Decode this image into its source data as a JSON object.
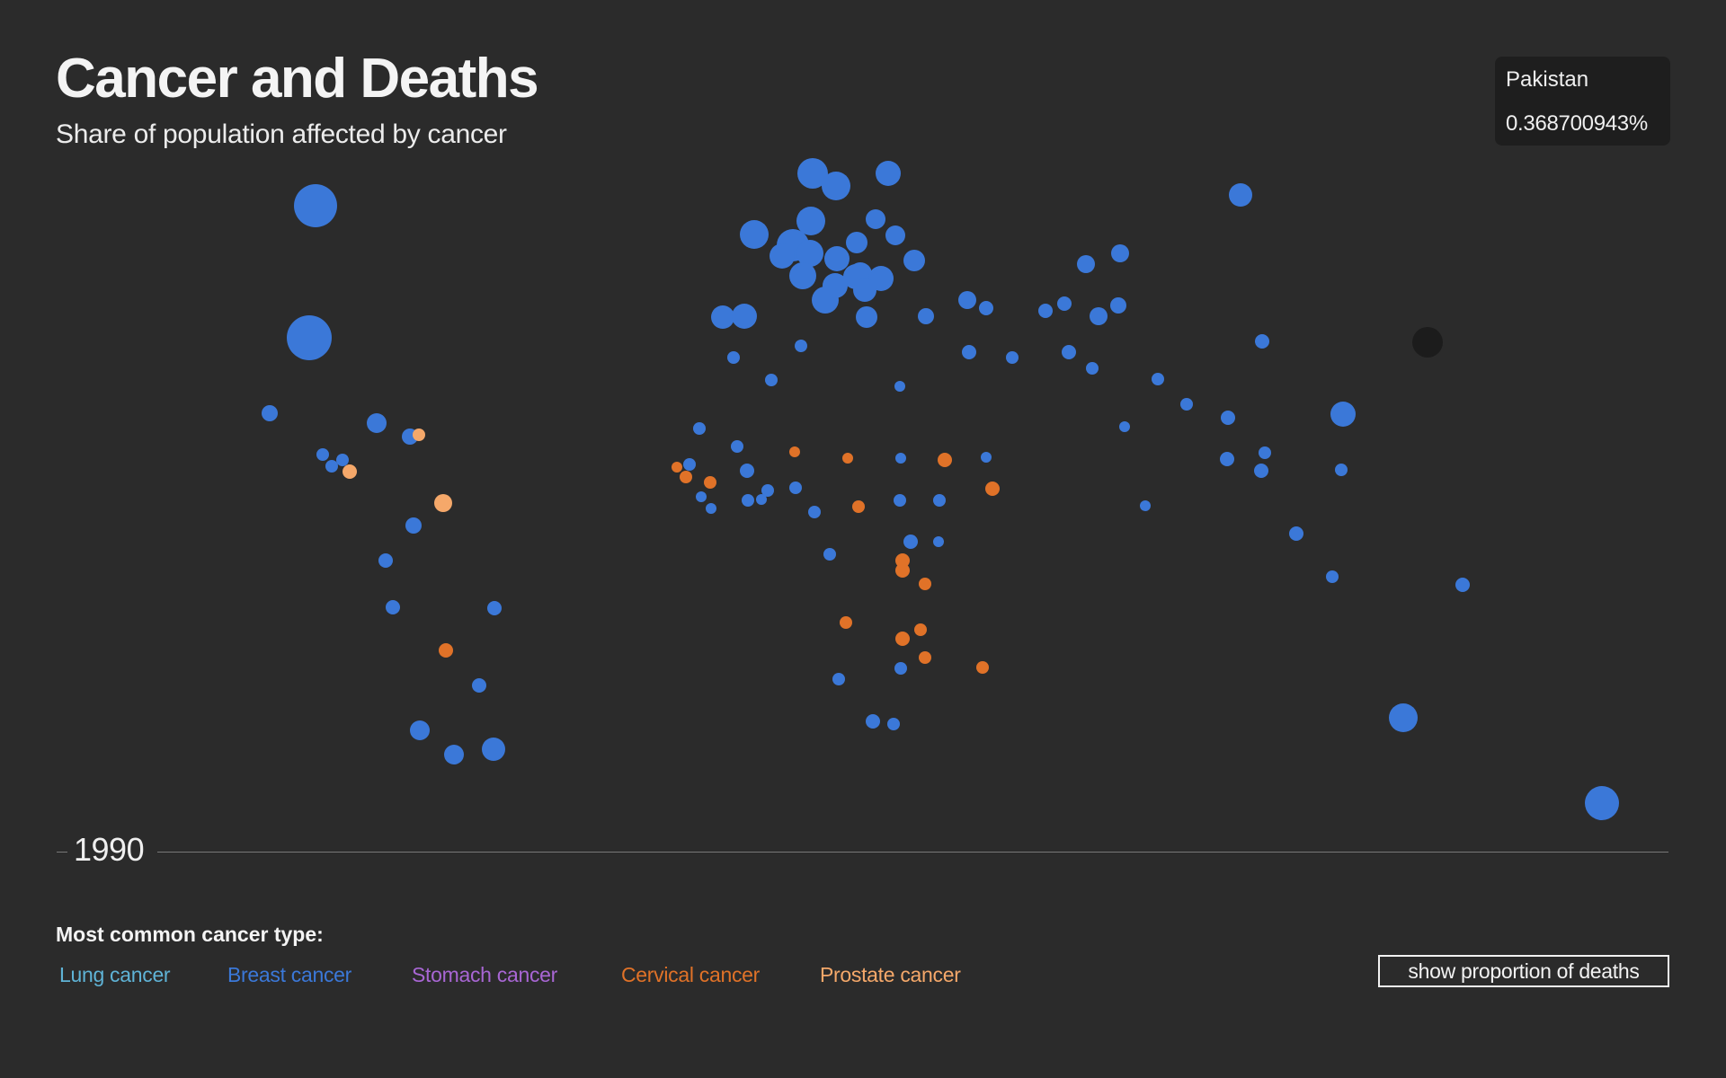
{
  "header": {
    "title": "Cancer and Deaths",
    "subtitle": "Share of population affected by cancer"
  },
  "tooltip": {
    "country": "Pakistan",
    "value": "0.368700943%"
  },
  "timeline": {
    "year": "1990"
  },
  "legend": {
    "title": "Most common cancer type:",
    "items": [
      {
        "label": "Lung cancer",
        "color": "#5fb3d6"
      },
      {
        "label": "Breast cancer",
        "color": "#3b78d8"
      },
      {
        "label": "Stomach cancer",
        "color": "#a866d4"
      },
      {
        "label": "Cervical cancer",
        "color": "#e07228"
      },
      {
        "label": "Prostate cancer",
        "color": "#f5a86a"
      }
    ]
  },
  "controls": {
    "toggle_label": "show proportion of deaths"
  },
  "colors": {
    "background": "#2b2b2b",
    "breast": "#3b78d8",
    "cervical": "#e07228",
    "prostate": "#f5a86a",
    "highlight": "#1c1c1c"
  },
  "chart_data": {
    "type": "scatter",
    "title": "Cancer and Deaths",
    "subtitle": "Share of population affected by cancer",
    "year": "1990",
    "encoding": "bubble per country; color = most common cancer type; size = share of population affected",
    "highlighted": {
      "country": "Pakistan",
      "value": "0.368700943%"
    },
    "series": [
      {
        "name": "Breast cancer",
        "points": [
          [
            351,
            229,
            24
          ],
          [
            344,
            376,
            25
          ],
          [
            300,
            460,
            9
          ],
          [
            419,
            471,
            11
          ],
          [
            359,
            506,
            7
          ],
          [
            369,
            519,
            7
          ],
          [
            381,
            512,
            7
          ],
          [
            456,
            486,
            9
          ],
          [
            460,
            585,
            9
          ],
          [
            429,
            624,
            8
          ],
          [
            437,
            676,
            8
          ],
          [
            550,
            677,
            8
          ],
          [
            533,
            763,
            8
          ],
          [
            467,
            813,
            11
          ],
          [
            505,
            840,
            11
          ],
          [
            549,
            834,
            13
          ],
          [
            904,
            193,
            17
          ],
          [
            930,
            207,
            16
          ],
          [
            988,
            193,
            14
          ],
          [
            839,
            261,
            16
          ],
          [
            902,
            246,
            16
          ],
          [
            882,
            273,
            18
          ],
          [
            953,
            270,
            12
          ],
          [
            901,
            282,
            15
          ],
          [
            974,
            244,
            11
          ],
          [
            996,
            262,
            11
          ],
          [
            931,
            288,
            14
          ],
          [
            1017,
            290,
            12
          ],
          [
            952,
            308,
            14
          ],
          [
            870,
            285,
            14
          ],
          [
            893,
            307,
            15
          ],
          [
            918,
            334,
            15
          ],
          [
            929,
            318,
            14
          ],
          [
            957,
            305,
            13
          ],
          [
            980,
            310,
            14
          ],
          [
            962,
            323,
            13
          ],
          [
            1030,
            352,
            9
          ],
          [
            964,
            353,
            12
          ],
          [
            804,
            353,
            13
          ],
          [
            828,
            352,
            14
          ],
          [
            891,
            385,
            7
          ],
          [
            816,
            398,
            7
          ],
          [
            858,
            423,
            7
          ],
          [
            1001,
            430,
            6
          ],
          [
            1076,
            334,
            10
          ],
          [
            1097,
            343,
            8
          ],
          [
            1078,
            392,
            8
          ],
          [
            1126,
            398,
            7
          ],
          [
            1208,
            294,
            10
          ],
          [
            1246,
            282,
            10
          ],
          [
            1222,
            352,
            10
          ],
          [
            1184,
            338,
            8
          ],
          [
            1163,
            346,
            8
          ],
          [
            1189,
            392,
            8
          ],
          [
            1215,
            410,
            7
          ],
          [
            1244,
            340,
            9
          ],
          [
            1251,
            475,
            6
          ],
          [
            1288,
            422,
            7
          ],
          [
            1320,
            450,
            7
          ],
          [
            1366,
            465,
            8
          ],
          [
            1380,
            217,
            13
          ],
          [
            1404,
            380,
            8
          ],
          [
            1365,
            511,
            8
          ],
          [
            1403,
            524,
            8
          ],
          [
            1407,
            504,
            7
          ],
          [
            1492,
            523,
            7
          ],
          [
            1494,
            461,
            14
          ],
          [
            1274,
            563,
            6
          ],
          [
            1442,
            594,
            8
          ],
          [
            1482,
            642,
            7
          ],
          [
            1627,
            651,
            8
          ],
          [
            778,
            477,
            7
          ],
          [
            767,
            517,
            7
          ],
          [
            780,
            553,
            6
          ],
          [
            791,
            566,
            6
          ],
          [
            820,
            497,
            7
          ],
          [
            831,
            524,
            8
          ],
          [
            832,
            557,
            7
          ],
          [
            847,
            556,
            6
          ],
          [
            854,
            546,
            7
          ],
          [
            885,
            543,
            7
          ],
          [
            906,
            570,
            7
          ],
          [
            1002,
            510,
            6
          ],
          [
            1097,
            509,
            6
          ],
          [
            1001,
            557,
            7
          ],
          [
            1045,
            557,
            7
          ],
          [
            1013,
            603,
            8
          ],
          [
            1044,
            603,
            6
          ],
          [
            923,
            617,
            7
          ],
          [
            933,
            756,
            7
          ],
          [
            1002,
            744,
            7
          ],
          [
            971,
            803,
            8
          ],
          [
            994,
            806,
            7
          ],
          [
            1561,
            799,
            16
          ],
          [
            1782,
            894,
            19
          ]
        ],
        "color": "#3b78d8"
      },
      {
        "name": "Cervical cancer",
        "points": [
          [
            753,
            520,
            6
          ],
          [
            763,
            531,
            7
          ],
          [
            790,
            537,
            7
          ],
          [
            884,
            503,
            6
          ],
          [
            943,
            510,
            6
          ],
          [
            1051,
            512,
            8
          ],
          [
            955,
            564,
            7
          ],
          [
            1104,
            544,
            8
          ],
          [
            1004,
            624,
            8
          ],
          [
            1004,
            635,
            8
          ],
          [
            1029,
            650,
            7
          ],
          [
            941,
            693,
            7
          ],
          [
            1024,
            701,
            7
          ],
          [
            1004,
            711,
            8
          ],
          [
            1029,
            732,
            7
          ],
          [
            1093,
            743,
            7
          ],
          [
            496,
            724,
            8
          ]
        ],
        "color": "#e07228"
      },
      {
        "name": "Prostate cancer",
        "points": [
          [
            389,
            525,
            8
          ],
          [
            466,
            484,
            7
          ],
          [
            493,
            560,
            10
          ]
        ],
        "color": "#f5a86a"
      }
    ],
    "highlight_point": [
      1588,
      381,
      17
    ],
    "legend": [
      "Lung cancer",
      "Breast cancer",
      "Stomach cancer",
      "Cervical cancer",
      "Prostate cancer"
    ]
  }
}
